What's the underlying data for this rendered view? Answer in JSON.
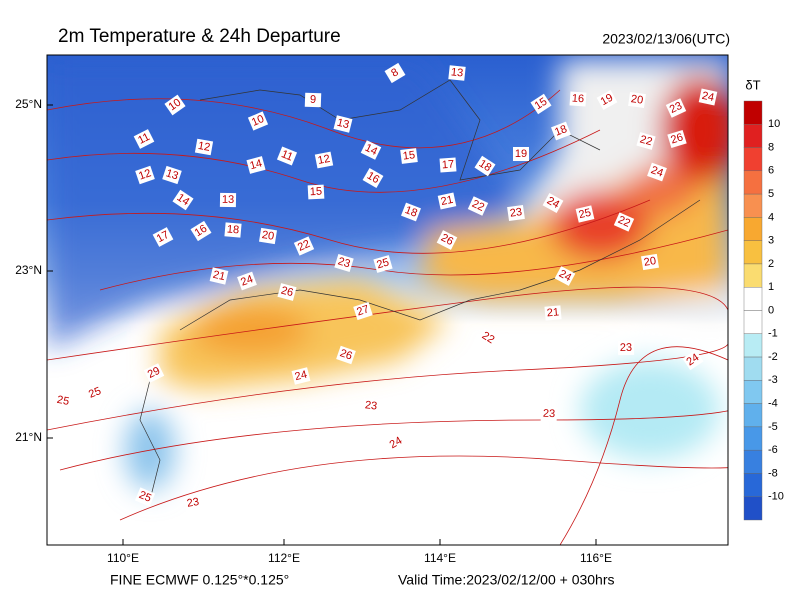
{
  "header": {
    "title": "2m Temperature & 24h Departure",
    "time": "2023/02/13/06(UTC)"
  },
  "map": {
    "lat_labels": [
      "25°N",
      "23°N",
      "21°N"
    ],
    "lon_labels": [
      "110°E",
      "112°E",
      "114°E",
      "116°E"
    ],
    "contour_labels": [
      10,
      9,
      8,
      13,
      11,
      12,
      10,
      13,
      12,
      13,
      14,
      11,
      12,
      14,
      15,
      16,
      15,
      14,
      13,
      16,
      18,
      17,
      20,
      22,
      21,
      24,
      23,
      25,
      18,
      21,
      22,
      23,
      24,
      17,
      18,
      19,
      15,
      16,
      19,
      20,
      23,
      24,
      18,
      22,
      26,
      24,
      25,
      22,
      20,
      24,
      21,
      22,
      23,
      24,
      23,
      24,
      23,
      29,
      25,
      25,
      26,
      27,
      26,
      24,
      25,
      23,
      26
    ]
  },
  "colorbar": {
    "title": "δT",
    "ticks": [
      10,
      8,
      6,
      5,
      4,
      3,
      2,
      1,
      0,
      -1,
      -2,
      -3,
      -4,
      -5,
      -6,
      -8,
      -10
    ]
  },
  "footer": {
    "source": "FINE ECMWF 0.125°*0.125°",
    "valid": "Valid Time:2023/02/12/00 + 030hrs"
  }
}
